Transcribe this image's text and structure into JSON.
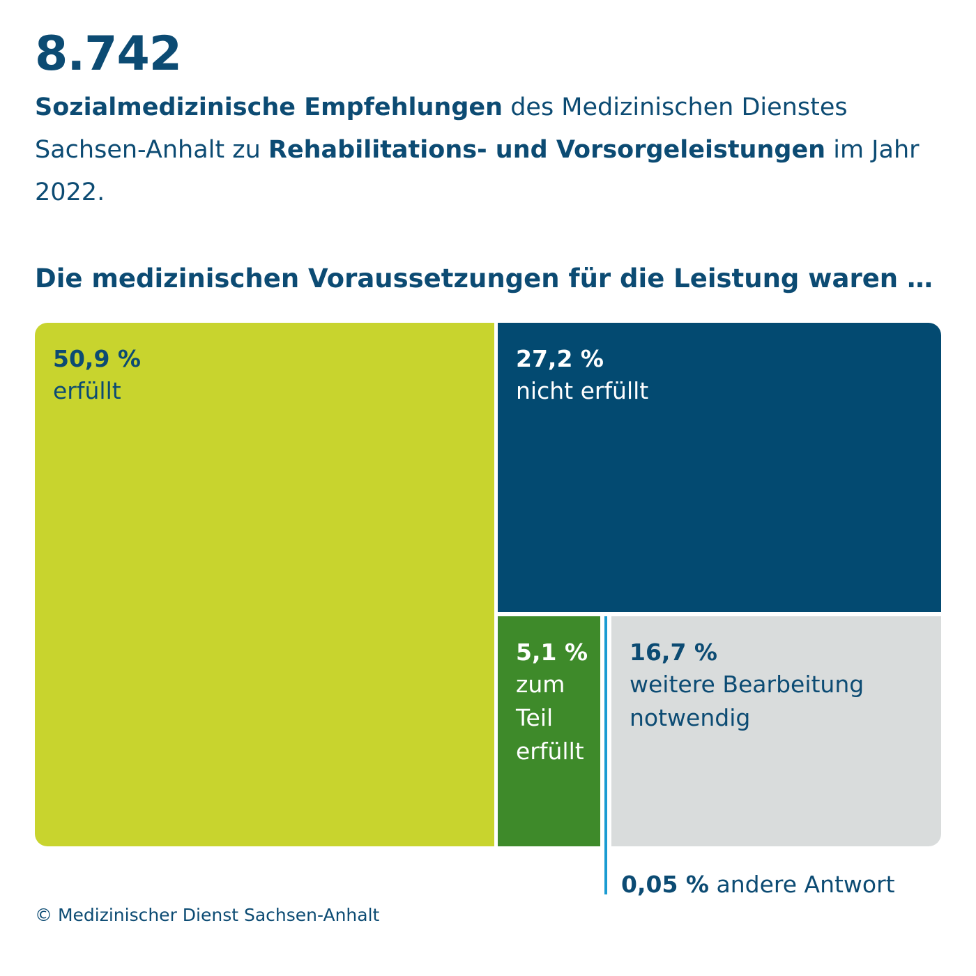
{
  "header": {
    "total": "8.742",
    "intro_bold_1": "Sozialmedizinische Empfehlungen",
    "intro_text_1": " des Medizinischen Dienstes Sachsen-Anhalt zu ",
    "intro_bold_2": "Rehabilitations- und Vorsorgeleistungen",
    "intro_text_2": " im Jahr 2022."
  },
  "question": "Die medizinischen Voraussetzungen für die Leistung waren …",
  "chart_data": {
    "type": "treemap",
    "total": 8742,
    "unit": "%",
    "segments": [
      {
        "label": "erfüllt",
        "value": 50.9,
        "display": "50,9 %",
        "color": "#c8d42e"
      },
      {
        "label": "nicht erfüllt",
        "value": 27.2,
        "display": "27,2 %",
        "color": "#034a71"
      },
      {
        "label": "zum Teil erfüllt",
        "value": 5.1,
        "display": "5,1 %",
        "color": "#3e8a2a"
      },
      {
        "label": "weitere Bearbeitung notwendig",
        "value": 16.7,
        "display": "16,7 %",
        "color": "#d9dcdc"
      },
      {
        "label": "andere Antwort",
        "value": 0.05,
        "display": "0,05 %",
        "color": "#1a9bd1"
      }
    ]
  },
  "footer": {
    "copyright": "© Medizinischer Dienst Sachsen-Anhalt"
  }
}
